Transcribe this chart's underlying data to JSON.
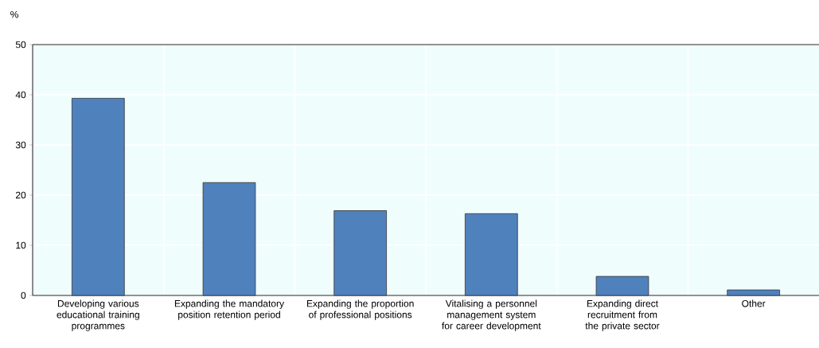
{
  "chart_data": {
    "type": "bar",
    "ylabel": "%",
    "categories": [
      "Developing various educational training programmes",
      "Expanding the mandatory position retention period",
      "Expanding the proportion of professional positions",
      "Vitalising a personnel management system for career development",
      "Expanding direct recruitment from the private sector",
      "Other"
    ],
    "values": [
      39.3,
      22.5,
      16.9,
      16.3,
      3.8,
      1.1
    ],
    "color": "#4f81bd",
    "ylim": [
      0,
      50
    ],
    "yticks": [
      0,
      10,
      20,
      30,
      40,
      50
    ],
    "grid": true
  }
}
